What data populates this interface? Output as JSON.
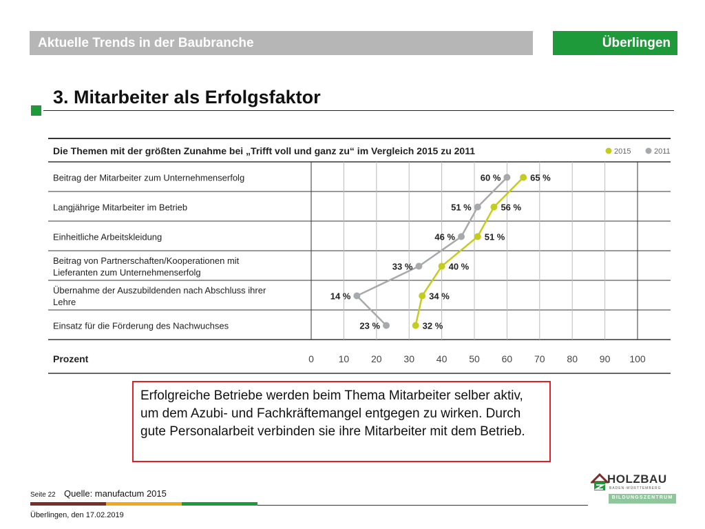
{
  "header": {
    "title": "Aktuelle Trends in der Baubranche",
    "location": "Überlingen"
  },
  "slide": {
    "title": "3. Mitarbeiter als Erfolgsfaktor"
  },
  "chart_data": {
    "type": "line",
    "title": "Die Themen mit der größten Zunahme bei „Trifft voll und ganz zu“ im Vergleich 2015 zu 2011",
    "categories": [
      "Beitrag der Mitarbeiter zum Unternehmenserfolg",
      "Langjährige Mitarbeiter im Betrieb",
      "Einheitliche Arbeitskleidung",
      "Beitrag von Partnerschaften/Kooperationen mit Lieferanten zum Unternehmenserfolg",
      "Übernahme der Auszubildenden nach Abschluss ihrer Lehre",
      "Einsatz für die Förderung des Nachwuchses"
    ],
    "series": [
      {
        "name": "2015",
        "color": "#c3cd1d",
        "values": [
          65,
          56,
          51,
          40,
          34,
          32
        ]
      },
      {
        "name": "2011",
        "color": "#a7a9ac",
        "values": [
          60,
          51,
          46,
          33,
          14,
          23
        ]
      }
    ],
    "value_labels": {
      "2015": [
        "65 %",
        "56 %",
        "51 %",
        "40 %",
        "34 %",
        "32 %"
      ],
      "2011": [
        "60 %",
        "51 %",
        "46 %",
        "33 %",
        "14 %",
        "23 %"
      ]
    },
    "xlabel": "Prozent",
    "xticks": [
      "0",
      "10",
      "20",
      "30",
      "40",
      "50",
      "60",
      "70",
      "80",
      "90",
      "100"
    ],
    "xlim": [
      0,
      100
    ],
    "grid": true,
    "legend": "top-right"
  },
  "callout": {
    "text": "Erfolgreiche Betriebe werden beim Thema Mitarbeiter selber aktiv, um dem Azubi- und Fachkräftemangel entgegen zu wirken. Durch gute Personalarbeit verbinden sie ihre Mitarbeiter mit dem Betrieb."
  },
  "footer": {
    "page": "Seite 22",
    "source": "Quelle: manufactum 2015",
    "date": "Überlingen, den 17.02.2019",
    "bar_colors": [
      "#7a2e27",
      "#f0a81e",
      "#1e9a3a"
    ]
  },
  "logo": {
    "name": "HOLZBAU",
    "sub": "BADEN-WÜRTTEMBERG",
    "band": "BILDUNGSZENTRUM"
  }
}
